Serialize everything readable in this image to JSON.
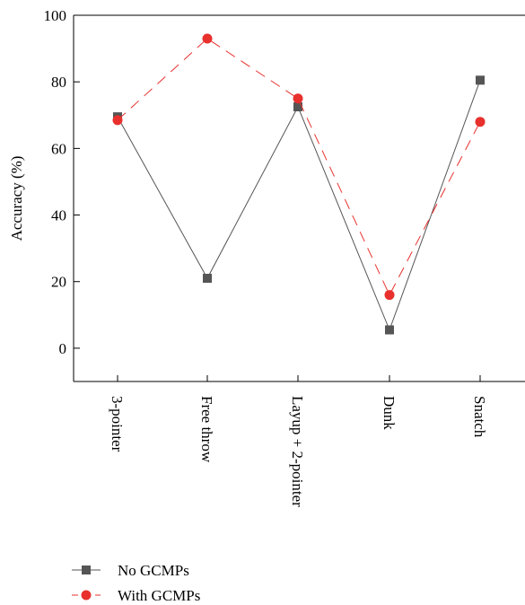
{
  "chart_data": {
    "type": "line",
    "title": "",
    "xlabel": "",
    "ylabel": "Accuracy (%)",
    "ylim": [
      -10,
      100
    ],
    "yticks": [
      0,
      20,
      40,
      60,
      80,
      100
    ],
    "grid": false,
    "legend_position": "bottom-left",
    "categories": [
      "3-pointer",
      "Free throw",
      "Layup + 2-pointer",
      "Dunk",
      "Snatch"
    ],
    "series": [
      {
        "name": "No GCMPs",
        "values": [
          69.5,
          21,
          72.5,
          5.5,
          80.5
        ],
        "color": "#555555",
        "marker": "square",
        "line_style": "solid"
      },
      {
        "name": "With GCMPs",
        "values": [
          68.5,
          93,
          75,
          16,
          68
        ],
        "color": "#e8302d",
        "marker": "circle",
        "line_style": "dashed"
      }
    ]
  }
}
